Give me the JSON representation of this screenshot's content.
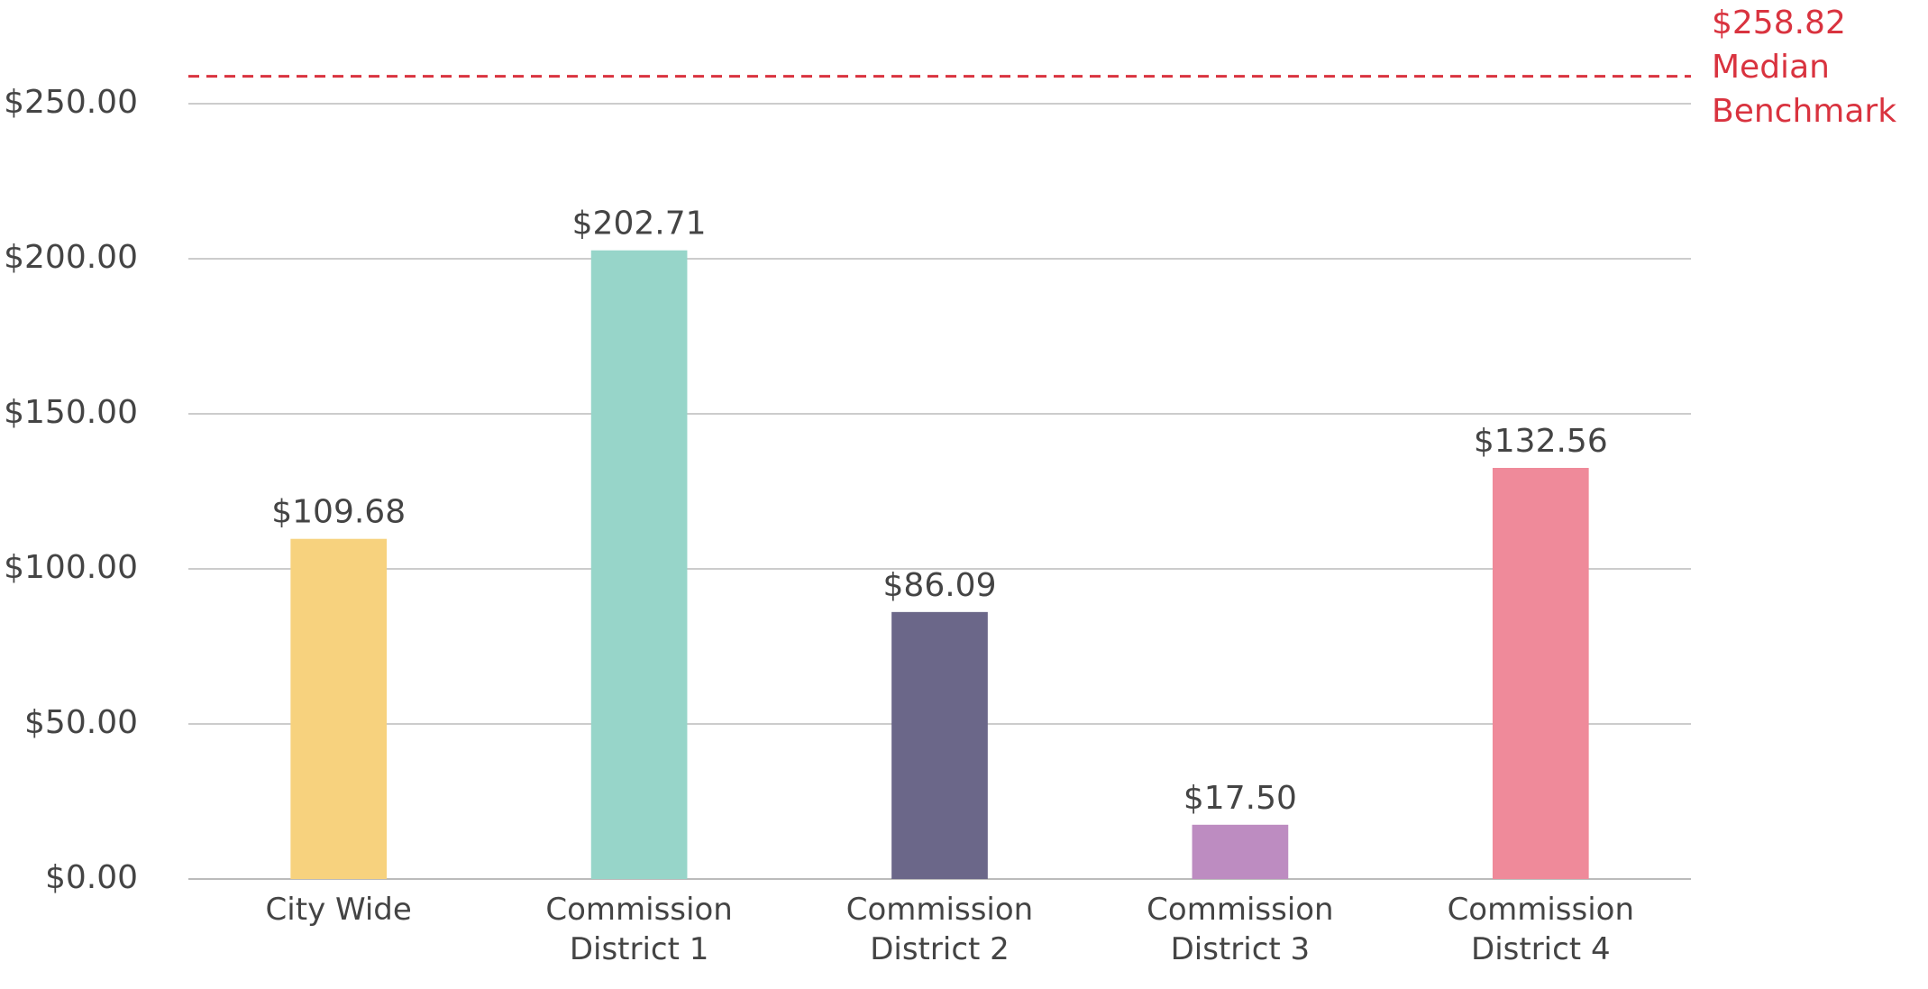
{
  "chart_data": {
    "type": "bar",
    "categories": [
      "City Wide",
      "Commission District 1",
      "Commission District 2",
      "Commission District 3",
      "Commission District 4"
    ],
    "values": [
      109.68,
      202.71,
      86.09,
      17.5,
      132.56
    ],
    "value_labels": [
      "$109.68",
      "$202.71",
      "$86.09",
      "$17.50",
      "$132.56"
    ],
    "colors": [
      "#f7d27e",
      "#97d5c9",
      "#6b6789",
      "#bd8cc1",
      "#ef8a9a"
    ],
    "ylim": [
      0,
      250
    ],
    "yticks": [
      {
        "value": 0,
        "label": "$0.00"
      },
      {
        "value": 50,
        "label": "$50.00"
      },
      {
        "value": 100,
        "label": "$100.00"
      },
      {
        "value": 150,
        "label": "$150.00"
      },
      {
        "value": 200,
        "label": "$200.00"
      },
      {
        "value": 250,
        "label": "$250.00"
      }
    ],
    "grid": true,
    "benchmark": {
      "value": 258.82,
      "label": "$258.82",
      "text_lines": [
        "Median",
        "Benchmark"
      ],
      "color": "#d9333f"
    }
  }
}
